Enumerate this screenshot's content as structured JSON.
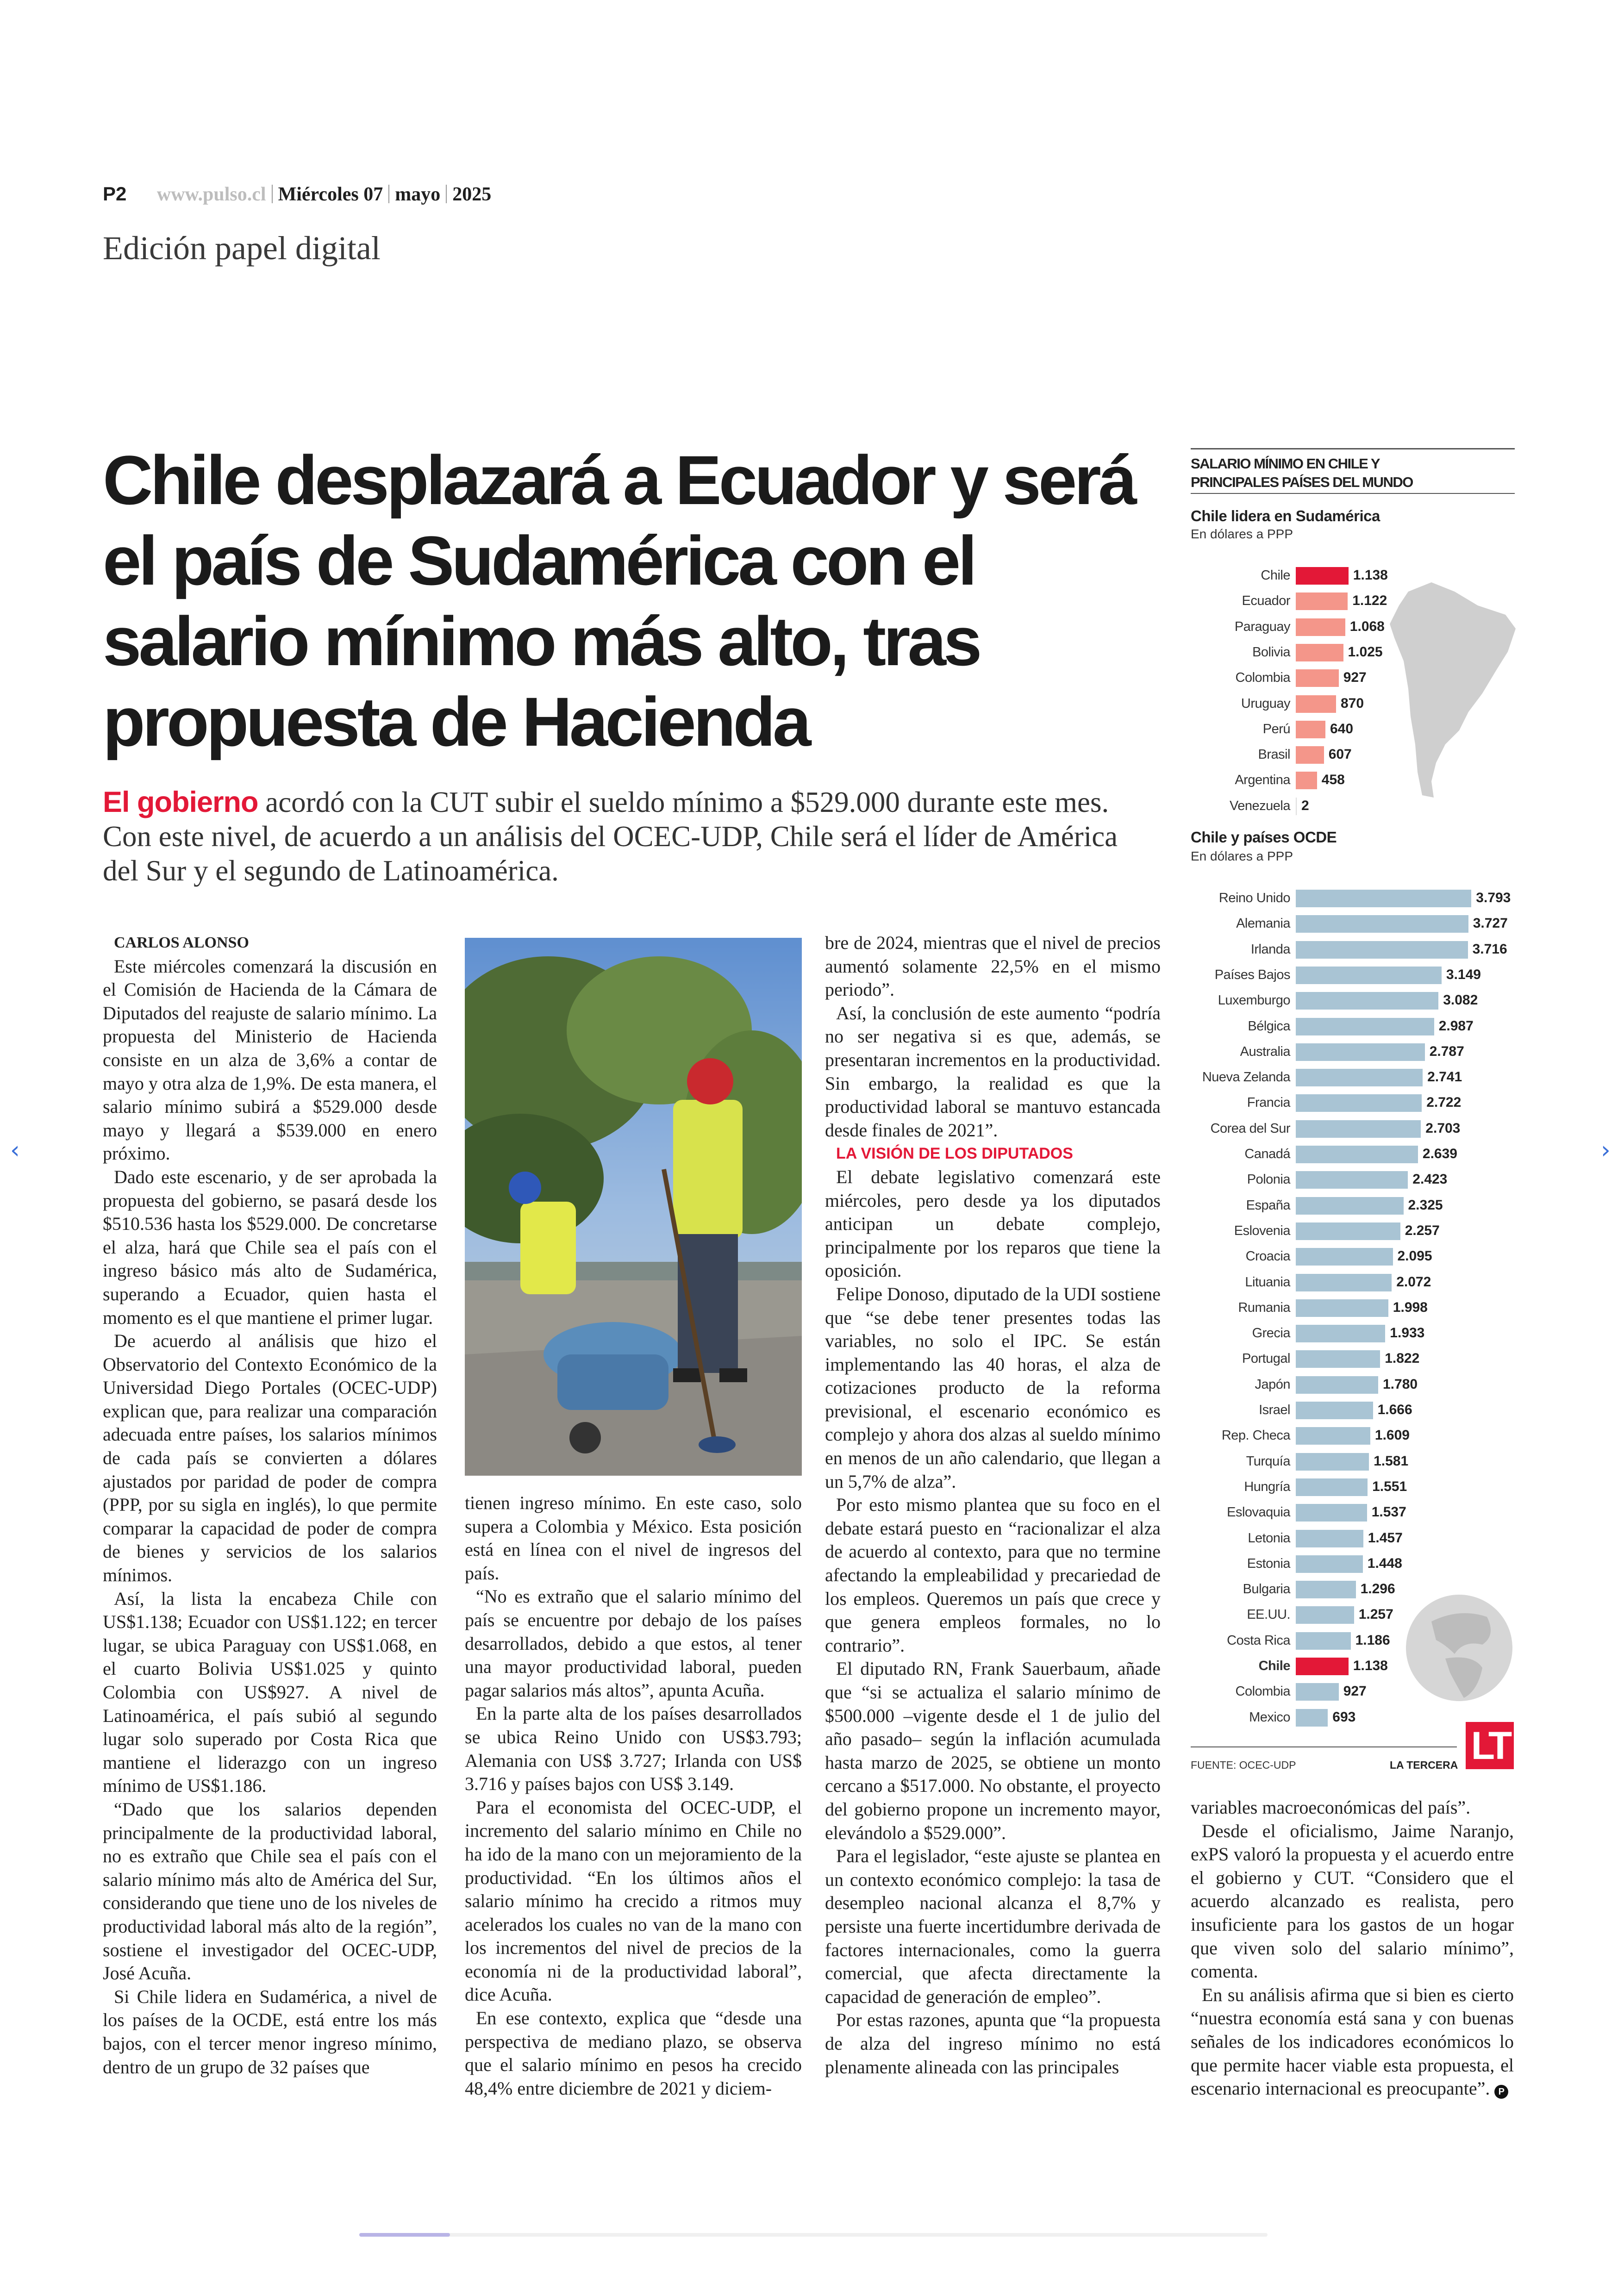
{
  "header": {
    "page": "P2",
    "url": "www.pulso.cl",
    "day": "Miércoles 07",
    "month": "mayo",
    "year": "2025",
    "edition": "Edición papel digital"
  },
  "article": {
    "headline": "Chile desplazará a Ecuador y será el país de Sudamérica con el salario mínimo más alto, tras propuesta de Hacienda",
    "deck_lead": "El gobierno",
    "deck_rest": " acordó con la CUT subir el sueldo mínimo a $529.000 durante este mes. Con este nivel, de acuerdo a un análisis del OCEC-UDP, Chile será el líder de América del Sur y el segundo de Latinoamérica.",
    "byline": "CARLOS ALONSO",
    "col1": [
      "Este miércoles comenzará la discusión en el Comisión de Hacienda de la Cámara de Diputados del reajuste de salario mínimo. La propuesta del Ministerio de Hacienda consiste en un alza de 3,6% a contar de mayo y otra alza de 1,9%. De esta manera, el salario mínimo subirá a $529.000 desde mayo y llegará a $539.000 en enero próximo.",
      "Dado este escenario, y de ser aprobada la propuesta del gobierno, se pasará desde los $510.536 hasta los $529.000. De concretarse el alza, hará que Chile sea el país con el ingreso básico más alto de Sudamérica, superando a Ecuador, quien hasta el momento es el que mantiene el primer lugar.",
      "De acuerdo al análisis que hizo el Observatorio del Contexto Económico de la Universidad Diego Portales (OCEC-UDP) explican que, para realizar una comparación adecuada entre países, los salarios mínimos de cada país se convierten a dólares ajustados por paridad de poder de compra (PPP, por su sigla en inglés), lo que permite comparar la capacidad de poder de compra de bienes y servicios de los salarios mínimos.",
      "Así, la lista la encabeza Chile con US$1.138; Ecuador con US$1.122; en tercer lugar, se ubica Paraguay con US$1.068, en el cuarto Bolivia US$1.025 y quinto Colombia con US$927. A nivel de Latinoamérica, el país subió al segundo lugar solo superado por Costa Rica que mantiene el liderazgo con un ingreso mínimo de US$1.186.",
      "“Dado que los salarios dependen principalmente de la productividad laboral, no es extraño que Chile sea el país con el salario mínimo más alto de América del Sur, considerando que tiene uno de los niveles de productividad laboral más alto de la región”, sostiene el investigador del OCEC-UDP, José Acuña.",
      "Si Chile lidera en Sudamérica, a nivel de los países de la OCDE, está entre los más bajos, con el tercer menor ingreso mínimo, dentro de un grupo de 32 países que"
    ],
    "col2": [
      "tienen ingreso mínimo. En este caso, solo supera a Colombia y México. Esta posición está en línea con el nivel de ingresos del país.",
      "“No es extraño que el salario mínimo del país se encuentre por debajo de los países desarrollados, debido a que estos, al tener una mayor productividad laboral, pueden pagar salarios más altos”, apunta Acuña.",
      "En la parte alta de los países desarrollados se ubica Reino Unido con US$3.793; Alemania con US$ 3.727; Irlanda con US$ 3.716 y países bajos con US$ 3.149.",
      "Para el economista del OCEC-UDP, el incremento del salario mínimo en Chile no ha ido de la mano con un mejoramiento de la productividad. “En los últimos años el salario mínimo ha crecido a ritmos muy acelerados los cuales no van de la mano con los incrementos del nivel de precios de la economía ni de la productividad laboral”, dice Acuña.",
      "En ese contexto, explica que “desde una perspectiva de mediano plazo, se observa que el salario mínimo en pesos ha crecido 48,4% entre diciembre de 2021 y diciem-"
    ],
    "col3a": [
      "bre de 2024, mientras que el nivel de precios aumentó solamente 22,5% en el mismo periodo”.",
      "Así, la conclusión de este aumento “podría no ser negativa si es que, además, se presentaran incrementos en la productividad. Sin embargo, la realidad es que la productividad laboral se mantuvo estancada desde finales de 2021”."
    ],
    "subhead": "LA VISIÓN DE LOS DIPUTADOS",
    "col3b": [
      "El debate legislativo comenzará este miércoles, pero desde ya los diputados anticipan un debate complejo, principalmente por los reparos que tiene la oposición.",
      "Felipe Donoso, diputado de la UDI sostiene que “se debe tener presentes todas las variables, no solo el IPC. Se están implementando las 40 horas, el alza de cotizaciones producto de la reforma previsional, el escenario económico es complejo y ahora dos alzas al sueldo mínimo en menos de un año calendario, que llegan a un 5,7% de alza”.",
      "Por esto mismo plantea que su foco en el debate estará puesto en “racionalizar el alza de acuerdo al contexto, para que no termine afectando la empleabilidad y precariedad de los empleos. Queremos un país que crece y que genera empleos formales, no lo contrario”.",
      "El diputado RN, Frank Sauerbaum, añade que “si se actualiza el salario mínimo de $500.000 –vigente desde el 1 de julio del año pasado– según la inflación acumulada hasta marzo de 2025, se obtiene un monto cercano a $517.000. No obstante, el proyecto del gobierno propone un incremento mayor, elevándolo a $529.000”.",
      "Para el legislador, “este ajuste se plantea en un contexto económico complejo: la tasa de desempleo nacional alcanza el 8,7% y persiste una fuerte incertidumbre derivada de factores internacionales, como la guerra comercial, que afecta directamente la capacidad de generación de empleo”.",
      "Por estas razones, apunta que “la propuesta de alza del ingreso mínimo no está plenamente alineada con las principales"
    ],
    "col4": [
      "variables macroeconómicas del país”.",
      "Desde el oficialismo, Jaime Naranjo, exPS valoró la propuesta y el acuerdo entre el gobierno y CUT. “Considero que el acuerdo alcanzado es realista, pero insuficiente para los gastos de un hogar que viven solo del salario mínimo”, comenta.",
      "En su análisis afirma que si bien es cierto “nuestra economía está sana y con buenas señales de los indicadores económicos lo que permite hacer viable esta propuesta, el escenario internacional es preocupante”."
    ],
    "end_mark": "P"
  },
  "chart_data": [
    {
      "type": "bar",
      "orientation": "horizontal",
      "title": "SALARIO MÍNIMO EN CHILE Y PRINCIPALES PAÍSES DEL MUNDO",
      "subtitle": "Chile lidera en Sudamérica",
      "unit": "En dólares a PPP",
      "categories": [
        "Chile",
        "Ecuador",
        "Paraguay",
        "Bolivia",
        "Colombia",
        "Uruguay",
        "Perú",
        "Brasil",
        "Argentina",
        "Venezuela"
      ],
      "values": [
        1138,
        1122,
        1068,
        1025,
        927,
        870,
        640,
        607,
        458,
        2
      ],
      "labels": [
        "1.138",
        "1.122",
        "1.068",
        "1.025",
        "927",
        "870",
        "640",
        "607",
        "458",
        "2"
      ],
      "highlight": "Chile",
      "colors": {
        "highlight": "#e31837",
        "bar": "#f4968a"
      }
    },
    {
      "type": "bar",
      "orientation": "horizontal",
      "subtitle": "Chile y países OCDE",
      "unit": "En dólares a PPP",
      "categories": [
        "Reino Unido",
        "Alemania",
        "Irlanda",
        "Países Bajos",
        "Luxemburgo",
        "Bélgica",
        "Australia",
        "Nueva Zelanda",
        "Francia",
        "Corea del Sur",
        "Canadá",
        "Polonia",
        "España",
        "Eslovenia",
        "Croacia",
        "Lituania",
        "Rumania",
        "Grecia",
        "Portugal",
        "Japón",
        "Israel",
        "Rep. Checa",
        "Turquía",
        "Hungría",
        "Eslovaquia",
        "Letonia",
        "Estonia",
        "Bulgaria",
        "EE.UU.",
        "Costa Rica",
        "Chile",
        "Colombia",
        "Mexico"
      ],
      "values": [
        3793,
        3727,
        3716,
        3149,
        3082,
        2987,
        2787,
        2741,
        2722,
        2703,
        2639,
        2423,
        2325,
        2257,
        2095,
        2072,
        1998,
        1933,
        1822,
        1780,
        1666,
        1609,
        1581,
        1551,
        1537,
        1457,
        1448,
        1296,
        1257,
        1186,
        1138,
        927,
        693
      ],
      "labels": [
        "3.793",
        "3.727",
        "3.716",
        "3.149",
        "3.082",
        "2.987",
        "2.787",
        "2.741",
        "2.722",
        "2.703",
        "2.639",
        "2.423",
        "2.325",
        "2.257",
        "2.095",
        "2.072",
        "1.998",
        "1.933",
        "1.822",
        "1.780",
        "1.666",
        "1.609",
        "1.581",
        "1.551",
        "1.537",
        "1.457",
        "1.448",
        "1.296",
        "1.257",
        "1.186",
        "1.138",
        "927",
        "693"
      ],
      "highlight": "Chile",
      "colors": {
        "highlight": "#e31837",
        "bar": "#a9c4d4"
      }
    }
  ],
  "infographic": {
    "source": "FUENTE: OCEC-UDP",
    "credit": "LA TERCERA",
    "logo": "LT"
  },
  "nav": {
    "prev_icon": "chevron-left-icon",
    "next_icon": "chevron-right-icon",
    "prev": "‹",
    "next": "›"
  }
}
